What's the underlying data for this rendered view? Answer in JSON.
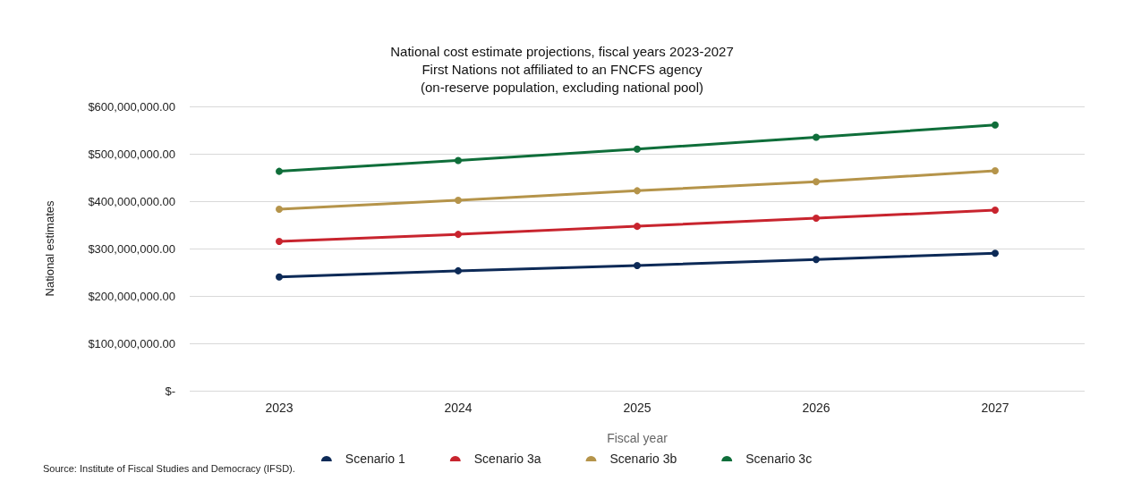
{
  "chart_data": {
    "type": "line",
    "title": "National cost estimate projections, fiscal years 2023-2027\nFirst Nations not affiliated to an FNCFS agency\n(on-reserve population, excluding national pool)",
    "xlabel": "Fiscal year",
    "ylabel": "National estimates",
    "categories": [
      "2023",
      "2024",
      "2025",
      "2026",
      "2027"
    ],
    "series": [
      {
        "name": "Scenario 1",
        "color": "#0d2a57",
        "values": [
          240000000,
          253000000,
          264000000,
          277000000,
          290000000
        ]
      },
      {
        "name": "Scenario 3a",
        "color": "#c8242e",
        "values": [
          315000000,
          330000000,
          347000000,
          364000000,
          381000000
        ]
      },
      {
        "name": "Scenario 3b",
        "color": "#b5944a",
        "values": [
          383000000,
          402000000,
          422000000,
          441000000,
          464000000
        ]
      },
      {
        "name": "Scenario 3c",
        "color": "#0f6e3a",
        "values": [
          463000000,
          486000000,
          510000000,
          535000000,
          561000000
        ]
      }
    ],
    "ylim": [
      0,
      600000000
    ],
    "yticks": [
      {
        "value": 0,
        "label": "$-"
      },
      {
        "value": 100000000,
        "label": "$100,000,000.00"
      },
      {
        "value": 200000000,
        "label": "$200,000,000.00"
      },
      {
        "value": 300000000,
        "label": "$300,000,000.00"
      },
      {
        "value": 400000000,
        "label": "$400,000,000.00"
      },
      {
        "value": 500000000,
        "label": "$500,000,000.00"
      },
      {
        "value": 600000000,
        "label": "$600,000,000.00"
      }
    ],
    "grid": "y",
    "legend": "bottom",
    "marker": "circle",
    "line_style": "solid",
    "annotations": [
      "Source: Institute of Fiscal Studies and Democracy (IFSD)."
    ]
  }
}
